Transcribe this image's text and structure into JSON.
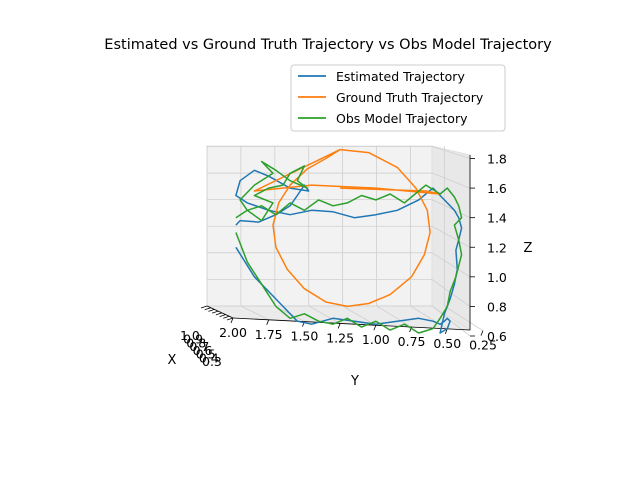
{
  "chart_data": {
    "type": "line",
    "title": "Estimated vs Ground Truth Trajectory vs Obs Model Trajectory",
    "xlabel": "X",
    "ylabel": "Y",
    "zlabel": "Z",
    "projection": "3d",
    "grid": true,
    "legend_placement": "top-right",
    "x_ticks": [
      "1.0",
      "0.9",
      "0.8",
      "0.7",
      "0.6",
      "0.5",
      "0.4",
      "0.3"
    ],
    "y_ticks": [
      "2.00",
      "1.75",
      "1.50",
      "1.25",
      "1.00",
      "0.75",
      "0.50",
      "0.25"
    ],
    "z_ticks": [
      "0.6",
      "0.8",
      "1.0",
      "1.2",
      "1.4",
      "1.6",
      "1.8"
    ],
    "ylim": [
      0.15,
      2.05
    ],
    "zlim": [
      0.6,
      1.88
    ],
    "series": [
      {
        "name": "Estimated Trajectory",
        "color": "#1f77b4",
        "y": [
          1.98,
          1.95,
          1.82,
          1.7,
          1.6,
          1.55,
          1.5,
          1.47,
          1.6,
          1.75,
          1.85,
          1.95,
          1.98,
          1.9,
          1.75,
          1.6,
          1.45,
          1.3,
          1.15,
          1.0,
          0.85,
          0.7,
          0.6,
          0.55,
          0.5,
          0.45,
          0.42,
          0.4,
          0.42,
          0.44,
          0.43,
          0.45,
          0.48,
          0.52,
          0.55,
          0.5,
          0.48,
          0.5,
          0.52,
          0.55,
          0.6,
          0.7,
          0.85,
          1.0,
          1.15,
          1.3,
          1.45,
          1.55,
          1.7,
          1.85,
          1.98
        ],
        "z": [
          1.35,
          1.38,
          1.37,
          1.42,
          1.48,
          1.55,
          1.62,
          1.58,
          1.6,
          1.68,
          1.72,
          1.65,
          1.55,
          1.5,
          1.45,
          1.42,
          1.45,
          1.44,
          1.4,
          1.42,
          1.45,
          1.52,
          1.6,
          1.55,
          1.5,
          1.45,
          1.4,
          1.33,
          1.25,
          1.18,
          1.05,
          0.95,
          0.85,
          0.75,
          0.62,
          0.65,
          0.7,
          0.72,
          0.7,
          0.68,
          0.7,
          0.72,
          0.7,
          0.68,
          0.7,
          0.72,
          0.68,
          0.7,
          0.85,
          1.0,
          1.2
        ]
      },
      {
        "name": "Ground Truth Trajectory",
        "color": "#ff7f0e",
        "y": [
          1.25,
          1.05,
          0.85,
          0.72,
          0.64,
          0.62,
          0.66,
          0.75,
          0.9,
          1.05,
          1.2,
          1.35,
          1.5,
          1.62,
          1.7,
          1.72,
          1.68,
          1.6,
          1.48,
          1.35,
          1.25,
          1.85,
          1.45,
          1.0,
          0.55,
          0.65,
          1.25
        ],
        "z": [
          1.86,
          1.84,
          1.74,
          1.6,
          1.45,
          1.3,
          1.15,
          1.0,
          0.88,
          0.82,
          0.8,
          0.83,
          0.92,
          1.05,
          1.2,
          1.35,
          1.5,
          1.62,
          1.73,
          1.8,
          1.86,
          1.58,
          1.62,
          1.6,
          1.56,
          1.58,
          1.6
        ]
      },
      {
        "name": "Obs Model Trajectory",
        "color": "#2ca02c",
        "y": [
          1.98,
          1.9,
          1.8,
          1.72,
          1.85,
          1.75,
          1.65,
          1.6,
          1.5,
          1.55,
          1.48,
          1.6,
          1.7,
          1.8,
          1.72,
          1.85,
          1.95,
          1.9,
          1.8,
          1.7,
          1.6,
          1.5,
          1.4,
          1.3,
          1.2,
          1.1,
          1.0,
          0.9,
          0.8,
          0.7,
          0.65,
          0.55,
          0.5,
          0.45,
          0.42,
          0.4,
          0.45,
          0.42,
          0.4,
          0.44,
          0.48,
          0.5,
          0.55,
          0.6,
          0.7,
          0.8,
          0.9,
          1.0,
          1.1,
          1.2,
          1.3,
          1.4,
          1.5,
          1.6,
          1.7,
          1.8,
          1.9,
          1.98
        ],
        "z": [
          1.4,
          1.45,
          1.38,
          1.5,
          1.55,
          1.6,
          1.62,
          1.7,
          1.75,
          1.65,
          1.6,
          1.65,
          1.72,
          1.78,
          1.7,
          1.62,
          1.52,
          1.45,
          1.48,
          1.42,
          1.5,
          1.45,
          1.52,
          1.48,
          1.5,
          1.55,
          1.52,
          1.56,
          1.5,
          1.58,
          1.62,
          1.56,
          1.6,
          1.54,
          1.48,
          1.4,
          1.35,
          1.25,
          1.15,
          1.0,
          0.9,
          0.8,
          0.72,
          0.65,
          0.62,
          0.68,
          0.64,
          0.7,
          0.66,
          0.72,
          0.68,
          0.7,
          0.75,
          0.72,
          0.8,
          0.95,
          1.1,
          1.3
        ]
      }
    ]
  }
}
